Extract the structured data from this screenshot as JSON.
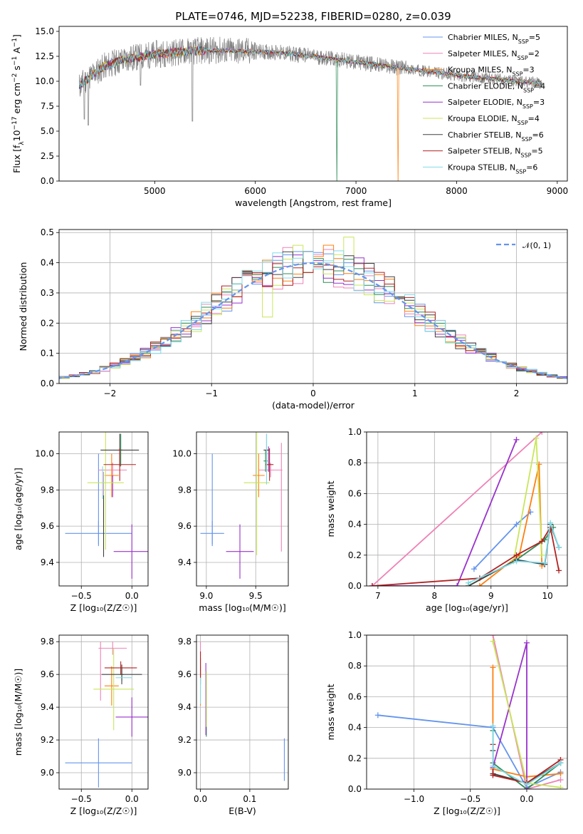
{
  "figure_title": "PLATE=0746, MJD=52238, FIBERID=0280, z=0.039",
  "colors": [
    "#6495ed",
    "#ee82b6",
    "#ff7f0e",
    "#2e8b57",
    "#9932cc",
    "#c8e65a",
    "#404040",
    "#b22222",
    "#7fdbe8"
  ],
  "legend_entries": [
    {
      "base": "Chabrier MILES, N",
      "sub": "SSP",
      "tail": "=5"
    },
    {
      "base": "Salpeter MILES, N",
      "sub": "SSP",
      "tail": "=2"
    },
    {
      "base": "Kroupa MILES, N",
      "sub": "SSP",
      "tail": "=3"
    },
    {
      "base": "Chabrier ELODIE, N",
      "sub": "SSP",
      "tail": "=4"
    },
    {
      "base": "Salpeter ELODIE, N",
      "sub": "SSP",
      "tail": "=3"
    },
    {
      "base": "Kroupa ELODIE, N",
      "sub": "SSP",
      "tail": "=4"
    },
    {
      "base": "Chabrier STELIB, N",
      "sub": "SSP",
      "tail": "=6"
    },
    {
      "base": "Salpeter STELIB, N",
      "sub": "SSP",
      "tail": "=5"
    },
    {
      "base": "Kroupa STELIB, N",
      "sub": "SSP",
      "tail": "=6"
    }
  ],
  "chart_data": [
    {
      "id": "spectrum",
      "type": "line",
      "xlabel": "wavelength [Angstrom, rest frame]",
      "ylabel_parts": [
        "Flux [f",
        "λ",
        "10",
        "−17",
        " erg cm",
        "−2",
        " s",
        "−1",
        " A",
        "−1",
        "]"
      ],
      "xlim": [
        4050,
        9100
      ],
      "ylim": [
        0,
        15.5
      ],
      "xticks": [
        5000,
        6000,
        7000,
        8000,
        9000
      ],
      "yticks": [
        0.0,
        2.5,
        5.0,
        7.5,
        10.0,
        12.5,
        15.0
      ],
      "xtick_labels": [
        "5000",
        "6000",
        "7000",
        "8000",
        "9000"
      ],
      "ytick_labels": [
        "0.0",
        "2.5",
        "5.0",
        "7.5",
        "10.0",
        "12.5",
        "15.0"
      ],
      "continuum": {
        "x": [
          4250,
          4300,
          4400,
          4500,
          4700,
          5000,
          5300,
          5600,
          5900,
          6200,
          6500,
          6800,
          7100,
          7400,
          7700,
          8000,
          8300,
          8600,
          8850
        ],
        "y": [
          9.5,
          10.0,
          10.8,
          11.5,
          12.2,
          12.7,
          13.0,
          13.1,
          13.0,
          12.9,
          12.6,
          12.2,
          11.8,
          11.4,
          11.0,
          10.6,
          10.3,
          10.0,
          9.8
        ]
      },
      "x_start": 4250,
      "x_end": 8850,
      "dips": [
        {
          "x": 4300,
          "y": 6.2
        },
        {
          "x": 4340,
          "y": 5.6
        },
        {
          "x": 4860,
          "y": 9.6
        },
        {
          "x": 5375,
          "y": 6.0
        }
      ],
      "dropouts": [
        {
          "x": 6810,
          "series": 3
        },
        {
          "x": 7420,
          "series": 2
        }
      ]
    },
    {
      "id": "residuals",
      "type": "step-histogram",
      "xlabel": "(data-model)/error",
      "ylabel": "Normed distribution",
      "xlim": [
        -2.5,
        2.5
      ],
      "ylim": [
        0,
        0.51
      ],
      "xticks": [
        -2,
        -1,
        0,
        1,
        2
      ],
      "yticks": [
        0.0,
        0.1,
        0.2,
        0.3,
        0.4,
        0.5
      ],
      "xtick_labels": [
        "−2",
        "−1",
        "0",
        "1",
        "2"
      ],
      "ytick_labels": [
        "0.0",
        "0.1",
        "0.2",
        "0.3",
        "0.4",
        "0.5"
      ],
      "bin_width": 0.1,
      "legend": "𝒩(0, 1)",
      "gaussian": {
        "mean": 0,
        "sigma": 1
      }
    },
    {
      "id": "age-vs-Z",
      "type": "errorbar",
      "xlabel": "Z [log₁₀(Z/Z☉)]",
      "ylabel": "age  [log₁₀(age/yr)]",
      "xlim": [
        -0.72,
        0.16
      ],
      "ylim": [
        9.27,
        10.12
      ],
      "xticks": [
        -0.5,
        0.0
      ],
      "yticks": [
        9.4,
        9.6,
        9.8,
        10.0
      ],
      "xtick_labels": [
        "−0.5",
        "0.0"
      ],
      "ytick_labels": [
        "9.4",
        "9.6",
        "9.8",
        "10.0"
      ],
      "points": [
        {
          "s": 0,
          "x": -0.33,
          "y": 9.56,
          "xerr": 0.33,
          "yerr": 0.07
        },
        {
          "s": 0,
          "x": -0.33,
          "y": 9.75,
          "xerr": 0.0,
          "yerr": 0.25
        },
        {
          "s": 1,
          "x": -0.19,
          "y": 9.91,
          "xerr": 0.14,
          "yerr": 0.04
        },
        {
          "s": 1,
          "x": -0.28,
          "y": 9.76,
          "xerr": 0.0,
          "yerr": 0.14
        },
        {
          "s": 2,
          "x": -0.2,
          "y": 9.88,
          "xerr": 0.07,
          "yerr": 0.12
        },
        {
          "s": 3,
          "x": -0.11,
          "y": 10.02,
          "xerr": 0.02,
          "yerr": 0.09
        },
        {
          "s": 4,
          "x": 0.0,
          "y": 9.46,
          "xerr": 0.18,
          "yerr": 0.15
        },
        {
          "s": 4,
          "x": -0.19,
          "y": 9.82,
          "xerr": 0.0,
          "yerr": 0.06
        },
        {
          "s": 5,
          "x": -0.26,
          "y": 9.84,
          "xerr": 0.18,
          "yerr": 0.37
        },
        {
          "s": 6,
          "x": -0.12,
          "y": 10.02,
          "xerr": 0.19,
          "yerr": 0.09
        },
        {
          "s": 6,
          "x": -0.28,
          "y": 9.6,
          "xerr": 0.0,
          "yerr": 0.17
        },
        {
          "s": 7,
          "x": -0.12,
          "y": 9.94,
          "xerr": 0.16,
          "yerr": 0.09
        },
        {
          "s": 8,
          "x": -0.29,
          "y": 9.84,
          "xerr": 0.0,
          "yerr": 0.09
        }
      ]
    },
    {
      "id": "age-vs-mass",
      "type": "errorbar",
      "xlabel": "mass [log₁₀(M/M☉)]",
      "ylabel": "",
      "xlim": [
        8.9,
        9.83
      ],
      "ylim": [
        9.27,
        10.12
      ],
      "xticks": [
        9.0,
        9.5
      ],
      "yticks": [
        9.4,
        9.6,
        9.8,
        10.0
      ],
      "xtick_labels": [
        "9.0",
        "9.5"
      ],
      "ytick_labels": [
        "9.4",
        "9.6",
        "9.8",
        "10.0"
      ],
      "points": [
        {
          "s": 0,
          "x": 9.06,
          "y": 9.56,
          "xerr": 0.12,
          "yerr": 0.07
        },
        {
          "s": 0,
          "x": 9.06,
          "y": 9.75,
          "xerr": 0.0,
          "yerr": 0.25
        },
        {
          "s": 1,
          "x": 9.65,
          "y": 9.91,
          "xerr": 0.12,
          "yerr": 0.04
        },
        {
          "s": 1,
          "x": 9.76,
          "y": 9.76,
          "xerr": 0.0,
          "yerr": 0.3
        },
        {
          "s": 2,
          "x": 9.53,
          "y": 9.88,
          "xerr": 0.06,
          "yerr": 0.12
        },
        {
          "s": 3,
          "x": 9.6,
          "y": 9.96,
          "xerr": 0.02,
          "yerr": 0.06
        },
        {
          "s": 4,
          "x": 9.34,
          "y": 9.46,
          "xerr": 0.14,
          "yerr": 0.15
        },
        {
          "s": 4,
          "x": 9.63,
          "y": 9.97,
          "xerr": 0.0,
          "yerr": 0.07
        },
        {
          "s": 5,
          "x": 9.51,
          "y": 9.84,
          "xerr": 0.13,
          "yerr": 0.4
        },
        {
          "s": 6,
          "x": 9.61,
          "y": 10.02,
          "xerr": 0.03,
          "yerr": 0.09
        },
        {
          "s": 7,
          "x": 9.64,
          "y": 9.94,
          "xerr": 0.04,
          "yerr": 0.09
        },
        {
          "s": 8,
          "x": 9.61,
          "y": 9.97,
          "xerr": 0.0,
          "yerr": 0.14
        }
      ]
    },
    {
      "id": "weight-vs-age",
      "type": "line",
      "xlabel": "age  [log₁₀(age/yr)]",
      "ylabel": "mass weight",
      "xlim": [
        6.8,
        10.35
      ],
      "ylim": [
        0,
        1
      ],
      "xticks": [
        7,
        8,
        9,
        10
      ],
      "yticks": [
        0.0,
        0.2,
        0.4,
        0.6,
        0.8,
        1.0
      ],
      "xtick_labels": [
        "7",
        "8",
        "9",
        "10"
      ],
      "ytick_labels": [
        "0.0",
        "0.2",
        "0.4",
        "0.6",
        "0.8",
        "1.0"
      ],
      "series": [
        {
          "s": 0,
          "x": [
            8.7,
            9.45,
            9.7
          ],
          "y": [
            0.11,
            0.4,
            0.48
          ]
        },
        {
          "s": 1,
          "x": 6.9,
          "x2": 9.9,
          "y": [
            0.0,
            1.0
          ],
          "pair": true
        },
        {
          "s": 2,
          "x": [
            8.8,
            9.5,
            9.85,
            9.9
          ],
          "y": [
            0.0,
            0.2,
            0.79,
            0.13
          ]
        },
        {
          "s": 3,
          "x": [
            8.6,
            9.45,
            9.95,
            10.1
          ],
          "y": [
            0.0,
            0.17,
            0.3,
            0.38
          ]
        },
        {
          "s": 4,
          "x": [
            6.9,
            8.4,
            9.45
          ],
          "y": [
            0.0,
            0.0,
            0.95
          ]
        },
        {
          "s": 5,
          "x": [
            8.6,
            9.4,
            9.8,
            9.9
          ],
          "y": [
            0.0,
            0.16,
            0.96,
            0.2
          ]
        },
        {
          "s": 6,
          "x": [
            8.6,
            9.45,
            9.95,
            10.05,
            10.2
          ],
          "y": [
            0.0,
            0.17,
            0.14,
            0.4,
            0.25
          ]
        },
        {
          "s": 7,
          "x": [
            6.9,
            8.8,
            9.45,
            9.9,
            10.05,
            10.2
          ],
          "y": [
            0.0,
            0.05,
            0.2,
            0.29,
            0.38,
            0.1
          ]
        },
        {
          "s": 8,
          "x": [
            8.6,
            9.45,
            9.95,
            10.05,
            10.2
          ],
          "y": [
            0.02,
            0.16,
            0.15,
            0.41,
            0.25
          ]
        }
      ]
    },
    {
      "id": "mass-vs-Z",
      "type": "errorbar",
      "xlabel": "Z [log₁₀(Z/Z☉)]",
      "ylabel": "mass [log₁₀(M/M☉)]",
      "xlim": [
        -0.72,
        0.16
      ],
      "ylim": [
        8.9,
        9.84
      ],
      "xticks": [
        -0.5,
        0.0
      ],
      "yticks": [
        9.0,
        9.2,
        9.4,
        9.6,
        9.8
      ],
      "xtick_labels": [
        "−0.5",
        "0.0"
      ],
      "ytick_labels": [
        "9.0",
        "9.2",
        "9.4",
        "9.6",
        "9.8"
      ],
      "points": [
        {
          "s": 0,
          "x": -0.33,
          "y": 9.06,
          "xerr": 0.33,
          "yerr": 0.15
        },
        {
          "s": 1,
          "x": -0.19,
          "y": 9.76,
          "xerr": 0.14,
          "yerr": 0.04
        },
        {
          "s": 1,
          "x": -0.31,
          "y": 9.62,
          "xerr": 0.0,
          "yerr": 0.18
        },
        {
          "s": 2,
          "x": -0.2,
          "y": 9.53,
          "xerr": 0.07,
          "yerr": 0.12
        },
        {
          "s": 3,
          "x": -0.1,
          "y": 9.6,
          "xerr": 0.02,
          "yerr": 0.04
        },
        {
          "s": 4,
          "x": 0.0,
          "y": 9.34,
          "xerr": 0.16,
          "yerr": 0.12
        },
        {
          "s": 5,
          "x": -0.18,
          "y": 9.51,
          "xerr": 0.2,
          "yerr": 0.25
        },
        {
          "s": 6,
          "x": -0.1,
          "y": 9.6,
          "xerr": 0.2,
          "yerr": 0.06
        },
        {
          "s": 7,
          "x": -0.11,
          "y": 9.64,
          "xerr": 0.16,
          "yerr": 0.04
        },
        {
          "s": 8,
          "x": -0.08,
          "y": 9.58,
          "xerr": 0.08,
          "yerr": 0.0
        }
      ]
    },
    {
      "id": "mass-vs-EBV",
      "type": "errorbar",
      "xlabel": "E(B-V)",
      "ylabel": "",
      "xlim": [
        -0.008,
        0.178
      ],
      "ylim": [
        8.9,
        9.84
      ],
      "xticks": [
        0.0,
        0.1
      ],
      "yticks": [
        9.0,
        9.2,
        9.4,
        9.6,
        9.8
      ],
      "xtick_labels": [
        "0.0",
        "0.1"
      ],
      "ytick_labels": [
        "9.0",
        "9.2",
        "9.4",
        "9.6",
        "9.8"
      ],
      "points": [
        {
          "s": 0,
          "x": 0.17,
          "y": 9.08,
          "xerr": 0.0,
          "yerr": 0.13
        },
        {
          "s": 1,
          "x": 0.0,
          "y": 9.7,
          "xerr": 0.0,
          "yerr": 0.1
        },
        {
          "s": 2,
          "x": 0.0,
          "y": 9.53,
          "xerr": 0.0,
          "yerr": 0.12
        },
        {
          "s": 3,
          "x": 0.012,
          "y": 9.42,
          "xerr": 0.0,
          "yerr": 0.2
        },
        {
          "s": 4,
          "x": 0.011,
          "y": 9.45,
          "xerr": 0.0,
          "yerr": 0.22
        },
        {
          "s": 5,
          "x": 0.012,
          "y": 9.45,
          "xerr": 0.0,
          "yerr": 0.17
        },
        {
          "s": 6,
          "x": 0.0,
          "y": 9.62,
          "xerr": 0.0,
          "yerr": 0.08
        },
        {
          "s": 7,
          "x": 0.0,
          "y": 9.66,
          "xerr": 0.0,
          "yerr": 0.08
        },
        {
          "s": 8,
          "x": 0.0,
          "y": 9.5,
          "xerr": 0.0,
          "yerr": 0.08
        }
      ]
    },
    {
      "id": "weight-vs-Z",
      "type": "line",
      "xlabel": "Z [log₁₀(Z/Z☉)]",
      "ylabel": "mass weight",
      "xlim": [
        -1.42,
        0.36
      ],
      "ylim": [
        0,
        1
      ],
      "xticks": [
        -1.0,
        -0.5,
        0.0
      ],
      "yticks": [
        0.0,
        0.2,
        0.4,
        0.6,
        0.8,
        1.0
      ],
      "xtick_labels": [
        "−1.0",
        "−0.5",
        "0.0"
      ],
      "ytick_labels": [
        "0.0",
        "0.2",
        "0.4",
        "0.6",
        "0.8",
        "1.0"
      ],
      "series": [
        {
          "s": 0,
          "x": [
            -1.32,
            -0.3,
            0.0,
            0.3
          ],
          "y": [
            0.48,
            0.4,
            0.01,
            0.11
          ]
        },
        {
          "s": 1,
          "x": [
            -0.3,
            0.0,
            0.3
          ],
          "y": [
            1.0,
            0.0,
            0.06
          ]
        },
        {
          "s": 2,
          "x": [
            -0.3,
            -0.3,
            0.0,
            0.3
          ],
          "y": [
            0.79,
            0.13,
            0.08,
            0.1
          ]
        },
        {
          "s": 3,
          "x": [
            -0.3,
            -0.3,
            0.0,
            0.3
          ],
          "y": [
            0.38,
            0.17,
            0.0,
            0.17
          ]
        },
        {
          "s": 4,
          "x": [
            -0.3,
            0.0,
            0.0
          ],
          "y": [
            0.14,
            0.95,
            0.0
          ]
        },
        {
          "s": 5,
          "x": [
            -0.3,
            0.0,
            0.3
          ],
          "y": [
            0.96,
            0.04,
            0.01
          ]
        },
        {
          "s": 6,
          "x": [
            -0.3,
            -0.3,
            0.0,
            0.3
          ],
          "y": [
            0.25,
            0.1,
            0.04,
            0.17
          ]
        },
        {
          "s": 7,
          "x": [
            -0.3,
            -0.3,
            0.0,
            0.3
          ],
          "y": [
            0.29,
            0.09,
            0.04,
            0.19
          ]
        },
        {
          "s": 8,
          "x": [
            -0.3,
            -0.3,
            0.0,
            0.3
          ],
          "y": [
            0.41,
            0.15,
            0.03,
            0.17
          ]
        }
      ]
    }
  ]
}
